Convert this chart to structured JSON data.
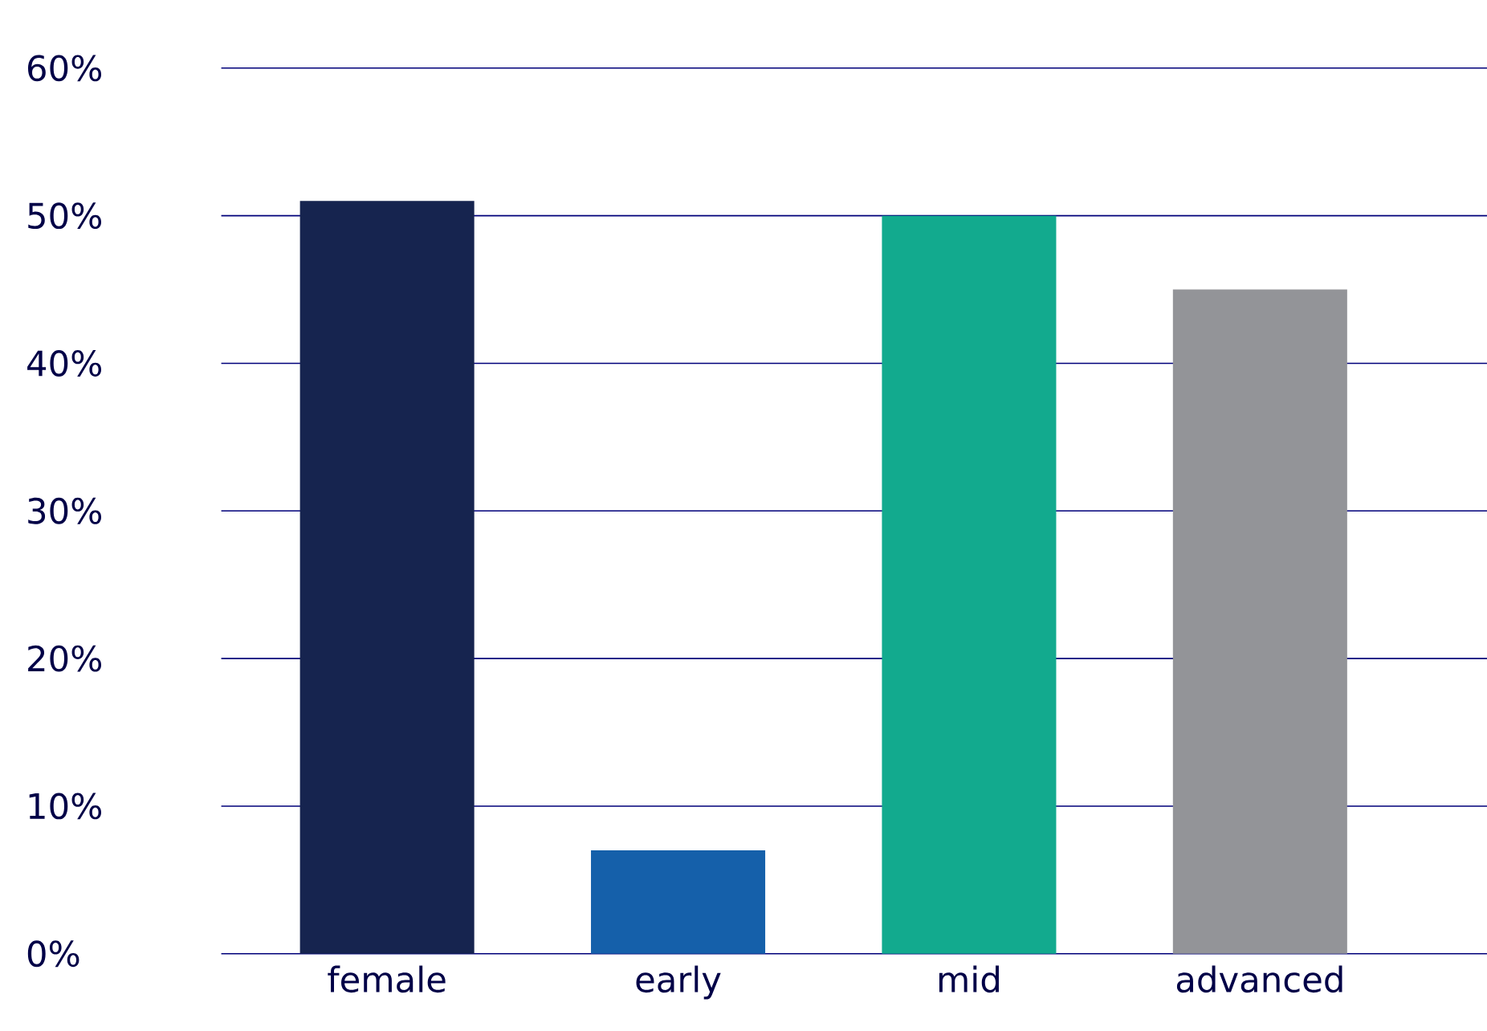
{
  "chart_data": {
    "type": "bar",
    "categories": [
      "female",
      "early",
      "mid",
      "advanced"
    ],
    "values": [
      51,
      7,
      50,
      45
    ],
    "colors": [
      "#16244f",
      "#1560aa",
      "#12aa8e",
      "#939498"
    ],
    "ylim": [
      0,
      60
    ],
    "yticks": [
      {
        "value": 0,
        "label": "0%"
      },
      {
        "value": 10,
        "label": "10%"
      },
      {
        "value": 20,
        "label": "20%"
      },
      {
        "value": 30,
        "label": "30%"
      },
      {
        "value": 40,
        "label": "40%"
      },
      {
        "value": 50,
        "label": "50%"
      },
      {
        "value": 60,
        "label": "60%"
      }
    ],
    "grid": "y"
  }
}
